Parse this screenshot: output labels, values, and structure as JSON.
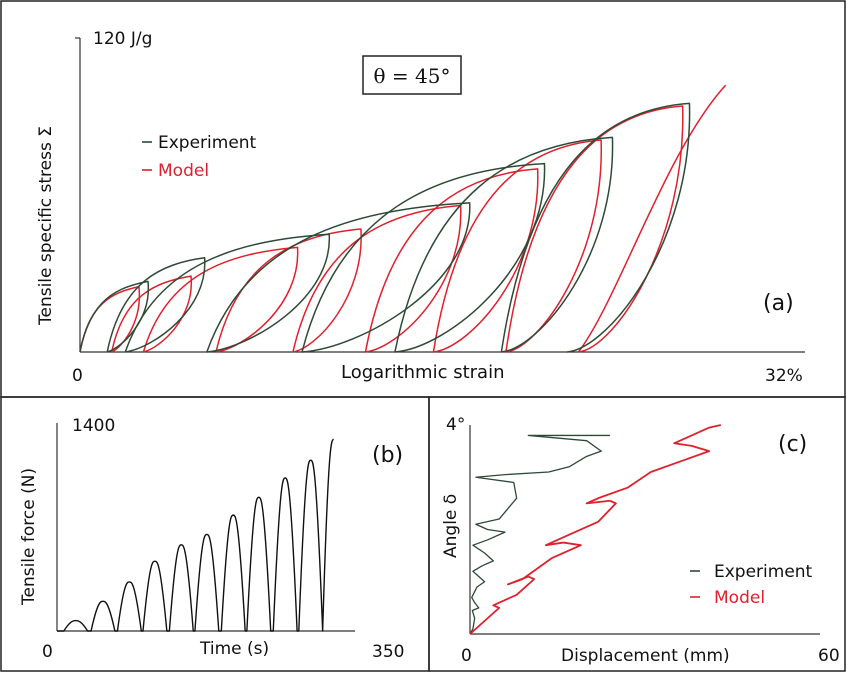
{
  "chart_data": [
    {
      "panel": "(a)",
      "type": "line",
      "annotation": "θ = 45°",
      "ylabel": "Tensile specific stress Σ",
      "xlabel": "Logarithmic strain",
      "x_tick_min": "0",
      "x_tick_max": "32%",
      "y_tick_max": "120 J/g",
      "xlim": [
        0,
        32
      ],
      "ylim": [
        0,
        120
      ],
      "legend": [
        "Experiment",
        "Model"
      ],
      "legend_position": "upper-left",
      "colors": {
        "experiment": "#2e4a36",
        "model": "#e0202c"
      },
      "series": [
        {
          "name": "Experiment",
          "cycles": [
            {
              "peak": [
                3,
                27
              ],
              "unload_start": 1.2
            },
            {
              "peak": [
                5.5,
                36
              ],
              "unload_start": 2.0
            },
            {
              "peak": [
                11,
                45
              ],
              "unload_start": 5.6
            },
            {
              "peak": [
                17.2,
                57
              ],
              "unload_start": 9.8
            },
            {
              "peak": [
                20.5,
                72
              ],
              "unload_start": 13.9
            },
            {
              "peak": [
                23.5,
                82
              ],
              "unload_start": 18.6
            },
            {
              "peak": [
                26.9,
                95
              ],
              "unload_start": 21.5
            }
          ]
        },
        {
          "name": "Model",
          "cycles": [
            {
              "peak": [
                2.6,
                25
              ],
              "unload_start": 1.4
            },
            {
              "peak": [
                4.9,
                29
              ],
              "unload_start": 2.8
            },
            {
              "peak": [
                9.6,
                40
              ],
              "unload_start": 6.0
            },
            {
              "peak": [
                12.4,
                47
              ],
              "unload_start": 9.4
            },
            {
              "peak": [
                16.8,
                56
              ],
              "unload_start": 12.6
            },
            {
              "peak": [
                20.2,
                70
              ],
              "unload_start": 15.6
            },
            {
              "peak": [
                23.0,
                81
              ],
              "unload_start": 18.8
            },
            {
              "peak": [
                26.6,
                94
              ],
              "unload_start": 22.0
            }
          ],
          "final_branch_end": [
            28.5,
            102
          ]
        }
      ]
    },
    {
      "panel": "(b)",
      "type": "line",
      "ylabel": "Tensile force (N)",
      "xlabel": "Time (s)",
      "x_tick_min": "0",
      "x_tick_max": "350",
      "y_tick_max": "1400",
      "xlim": [
        0,
        350
      ],
      "ylim": [
        0,
        1400
      ],
      "color": "#111111",
      "peaks": [
        {
          "t": 22,
          "f": 70
        },
        {
          "t": 54,
          "f": 200
        },
        {
          "t": 85,
          "f": 330
        },
        {
          "t": 115,
          "f": 470
        },
        {
          "t": 146,
          "f": 580
        },
        {
          "t": 176,
          "f": 650
        },
        {
          "t": 207,
          "f": 780
        },
        {
          "t": 237,
          "f": 900
        },
        {
          "t": 268,
          "f": 1030
        },
        {
          "t": 298,
          "f": 1150
        },
        {
          "t": 325,
          "f": 1290
        }
      ]
    },
    {
      "panel": "(c)",
      "type": "line",
      "ylabel": "Angle δ",
      "xlabel": "Displacement (mm)",
      "x_tick_min": "0",
      "x_tick_max": "60",
      "y_tick_max": "4°",
      "xlim": [
        0,
        60
      ],
      "ylim": [
        0,
        4
      ],
      "legend": [
        "Experiment",
        "Model"
      ],
      "legend_position": "lower-right",
      "colors": {
        "experiment": "#2e4a36",
        "model": "#e0202c"
      },
      "series": [
        {
          "name": "Experiment",
          "points": [
            [
              0,
              0
            ],
            [
              0.5,
              0.1
            ],
            [
              0.8,
              0.3
            ],
            [
              0.4,
              0.45
            ],
            [
              1.5,
              0.5
            ],
            [
              0.8,
              0.6
            ],
            [
              0.3,
              0.7
            ],
            [
              1.2,
              0.9
            ],
            [
              2.5,
              1
            ],
            [
              1.5,
              1.1
            ],
            [
              0.5,
              1.2
            ],
            [
              2,
              1.3
            ],
            [
              4,
              1.4
            ],
            [
              2.5,
              1.55
            ],
            [
              0.5,
              1.7
            ],
            [
              3,
              1.8
            ],
            [
              6,
              1.95
            ],
            [
              3,
              2.0
            ],
            [
              1,
              2.1
            ],
            [
              5,
              2.2
            ],
            [
              8,
              2.6
            ],
            [
              7.5,
              2.9
            ],
            [
              1,
              3.0
            ],
            [
              6,
              3.05
            ],
            [
              13.5,
              3.1
            ],
            [
              17,
              3.2
            ],
            [
              20,
              3.4
            ],
            [
              22.5,
              3.5
            ],
            [
              20,
              3.7
            ],
            [
              10,
              3.8
            ],
            [
              24,
              3.8
            ]
          ]
        },
        {
          "name": "Model",
          "points": [
            [
              0,
              0
            ],
            [
              5,
              0.5
            ],
            [
              4,
              0.55
            ],
            [
              8,
              0.75
            ],
            [
              11,
              1.05
            ],
            [
              10,
              1.1
            ],
            [
              6.5,
              0.95
            ],
            [
              9,
              1.05
            ],
            [
              14,
              1.45
            ],
            [
              19,
              1.7
            ],
            [
              16,
              1.75
            ],
            [
              13,
              1.7
            ],
            [
              17,
              1.9
            ],
            [
              22,
              2.15
            ],
            [
              25,
              2.5
            ],
            [
              24,
              2.55
            ],
            [
              20,
              2.5
            ],
            [
              22,
              2.6
            ],
            [
              27,
              2.8
            ],
            [
              31,
              3.1
            ],
            [
              36,
              3.3
            ],
            [
              41,
              3.5
            ],
            [
              38,
              3.6
            ],
            [
              35,
              3.65
            ],
            [
              37,
              3.75
            ],
            [
              41,
              3.95
            ],
            [
              43,
              4.0
            ]
          ]
        }
      ]
    }
  ]
}
